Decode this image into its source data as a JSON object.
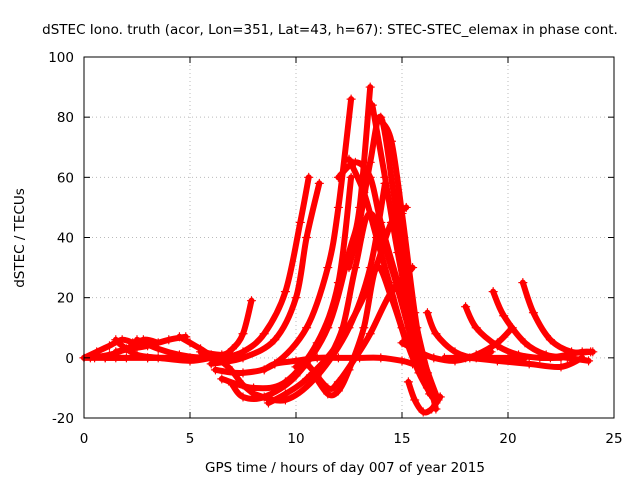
{
  "chart_data": {
    "type": "scatter",
    "title": "dSTEC Iono. truth (acor, Lon=351, Lat=43, h=67): STEC-STEC_elemax in phase cont.",
    "xlabel": "GPS time / hours of day 007 of year 2015",
    "ylabel": "dSTEC  / TECUs",
    "xlim": [
      0,
      25
    ],
    "ylim": [
      -20,
      100
    ],
    "xticks": [
      0,
      5,
      10,
      15,
      20,
      25
    ],
    "yticks": [
      -20,
      0,
      20,
      40,
      60,
      80,
      100
    ],
    "grid": true,
    "legend": "none",
    "marker": "plus",
    "color": "#ff0000",
    "series": [
      {
        "x": [
          0.0,
          0.5,
          1.0,
          1.5,
          2.0
        ],
        "y": [
          0,
          0,
          0,
          0,
          0
        ]
      },
      {
        "x": [
          0.0,
          0.6,
          1.2,
          1.8,
          2.3
        ],
        "y": [
          0,
          2,
          4,
          6,
          5
        ]
      },
      {
        "x": [
          0.3,
          1.2,
          2.0,
          2.8,
          3.5
        ],
        "y": [
          0,
          1,
          3,
          6,
          5
        ]
      },
      {
        "x": [
          1.5,
          2.2,
          3.0,
          4.0,
          4.8
        ],
        "y": [
          2,
          3,
          4,
          6,
          7
        ]
      },
      {
        "x": [
          1.0,
          3.0,
          5.0,
          6.5
        ],
        "y": [
          0,
          0,
          0,
          0
        ]
      },
      {
        "x": [
          1.5,
          1.8,
          2.5,
          3.5,
          5.0,
          6.0
        ],
        "y": [
          6,
          4,
          1,
          0,
          -1,
          0
        ]
      },
      {
        "x": [
          2.5,
          3.5,
          4.5,
          5.5,
          6.5,
          7.2
        ],
        "y": [
          6,
          3,
          1,
          0,
          0,
          0
        ]
      },
      {
        "x": [
          4.5,
          5.0,
          5.5,
          6.0,
          6.8
        ],
        "y": [
          7,
          5,
          3,
          1,
          0
        ]
      },
      {
        "x": [
          5.5,
          6.5,
          7.0,
          7.5,
          7.9
        ],
        "y": [
          2,
          1,
          3,
          8,
          19
        ]
      },
      {
        "x": [
          6.5,
          7.5,
          8.5,
          9.5,
          10.2,
          10.6
        ],
        "y": [
          0,
          2,
          8,
          22,
          45,
          60
        ]
      },
      {
        "x": [
          6.0,
          7.5,
          9.0,
          10.0,
          10.5,
          11.1
        ],
        "y": [
          -2,
          0,
          6,
          20,
          40,
          58
        ]
      },
      {
        "x": [
          6.2,
          7.5,
          9.0,
          10.5,
          11.5,
          12.0,
          12.6
        ],
        "y": [
          -4,
          -5,
          -2,
          10,
          30,
          50,
          86
        ]
      },
      {
        "x": [
          6.5,
          8.0,
          9.5,
          11.0,
          12.0,
          12.6
        ],
        "y": [
          -7,
          -10,
          -8,
          5,
          25,
          60
        ]
      },
      {
        "x": [
          7.0,
          7.5,
          8.5,
          10.0,
          11.5,
          12.5,
          13.0,
          13.5
        ],
        "y": [
          -9,
          -13,
          -13,
          -6,
          10,
          35,
          50,
          90
        ]
      },
      {
        "x": [
          8.0,
          9.5,
          11.0,
          12.5,
          13.5,
          14.2
        ],
        "y": [
          -12,
          -14,
          -6,
          10,
          30,
          58
        ]
      },
      {
        "x": [
          8.7,
          9.5,
          10.5,
          12.0,
          13.5,
          14.5,
          15.2
        ],
        "y": [
          -15,
          -12,
          -7,
          5,
          25,
          45,
          50
        ]
      },
      {
        "x": [
          8.5,
          9.0,
          10.0,
          11.0,
          12.0,
          13.0,
          14.0,
          15.0,
          15.5
        ],
        "y": [
          -4,
          -2,
          -1,
          0,
          0,
          0,
          0,
          -1,
          -2
        ]
      },
      {
        "x": [
          10.0,
          10.5,
          11.5,
          12.0,
          12.8,
          13.5,
          14.5,
          15.5
        ],
        "y": [
          -3,
          -2,
          -10,
          -8,
          0,
          8,
          22,
          30
        ]
      },
      {
        "x": [
          10.8,
          11.5,
          12.0,
          12.5,
          13.2,
          13.8,
          14.5,
          15.2
        ],
        "y": [
          -5,
          -12,
          -11,
          -4,
          10,
          30,
          20,
          5
        ]
      },
      {
        "x": [
          11.5,
          12.2,
          12.8,
          13.5,
          14.5,
          15.5,
          16.2
        ],
        "y": [
          -1,
          10,
          30,
          48,
          30,
          5,
          -10
        ]
      },
      {
        "x": [
          12.5,
          13.0,
          13.5,
          14.0,
          14.6,
          15.3,
          16.0
        ],
        "y": [
          30,
          45,
          65,
          80,
          55,
          20,
          -5
        ]
      },
      {
        "x": [
          12.0,
          12.8,
          13.5,
          14.0,
          14.8,
          15.6,
          16.3
        ],
        "y": [
          60,
          65,
          60,
          45,
          25,
          5,
          -12
        ]
      },
      {
        "x": [
          12.5,
          13.2,
          13.8,
          14.4,
          15.0,
          15.8,
          16.6
        ],
        "y": [
          66,
          55,
          40,
          25,
          10,
          -5,
          -15
        ]
      },
      {
        "x": [
          13.6,
          14.2,
          14.8,
          15.5,
          16.2,
          16.8
        ],
        "y": [
          84,
          60,
          35,
          10,
          -10,
          -13
        ]
      },
      {
        "x": [
          14.0,
          14.5,
          15.0,
          15.6,
          16.0,
          16.7
        ],
        "y": [
          79,
          72,
          48,
          15,
          0,
          -14
        ]
      },
      {
        "x": [
          14.8,
          15.0,
          15.3,
          15.7,
          16.2,
          16.6
        ],
        "y": [
          55,
          40,
          25,
          10,
          -5,
          -17
        ]
      },
      {
        "x": [
          15.3,
          15.6,
          16.0,
          16.4,
          16.8
        ],
        "y": [
          -8,
          -14,
          -18,
          -17,
          -13
        ]
      },
      {
        "x": [
          15.0,
          15.8,
          16.5,
          17.5,
          18.5,
          19.5,
          20.2
        ],
        "y": [
          5,
          2,
          0,
          -1,
          1,
          5,
          10
        ]
      },
      {
        "x": [
          16.2,
          16.6,
          17.5,
          18.5,
          19.2
        ],
        "y": [
          15,
          8,
          2,
          0,
          2
        ]
      },
      {
        "x": [
          17.0,
          18.0,
          19.0,
          20.0,
          20.8
        ],
        "y": [
          0,
          0,
          0,
          0,
          0
        ]
      },
      {
        "x": [
          18.0,
          18.5,
          19.5,
          20.5,
          21.5,
          22.5
        ],
        "y": [
          17,
          10,
          4,
          1,
          0,
          0
        ]
      },
      {
        "x": [
          19.3,
          19.8,
          20.8,
          21.8,
          22.8,
          23.8
        ],
        "y": [
          22,
          14,
          5,
          1,
          0,
          -1
        ]
      },
      {
        "x": [
          20.7,
          21.2,
          22.0,
          23.0,
          23.9
        ],
        "y": [
          25,
          15,
          6,
          2,
          2
        ]
      },
      {
        "x": [
          18.2,
          19.5,
          21.0,
          22.5,
          23.5
        ],
        "y": [
          0,
          -1,
          -2,
          -3,
          0
        ]
      },
      {
        "x": [
          22.0,
          22.8,
          23.5,
          24.0
        ],
        "y": [
          0,
          1,
          2,
          2
        ]
      },
      {
        "x": [
          3.0,
          4.5,
          6.0,
          6.8,
          7.5,
          8.2
        ],
        "y": [
          0,
          0,
          0,
          -3,
          -9,
          -13
        ]
      }
    ]
  }
}
